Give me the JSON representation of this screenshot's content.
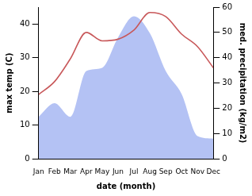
{
  "chart_data": {
    "type": "line",
    "xlabel": "date (month)",
    "ylabel": "max temp (C)",
    "y2label": "med. precipitation (kg/m2)",
    "categories": [
      "Jan",
      "Feb",
      "Mar",
      "Apr",
      "May",
      "Jun",
      "Jul",
      "Aug",
      "Sep",
      "Oct",
      "Nov",
      "Dec"
    ],
    "series": [
      {
        "name": "max temp",
        "type": "line",
        "color": "#c8585a",
        "axis": "y",
        "values": [
          19.1,
          22.9,
          29.7,
          37.5,
          35,
          35.5,
          38.2,
          43.4,
          42.2,
          37,
          33.3,
          27
        ]
      },
      {
        "name": "med. precipitation",
        "type": "area",
        "color": "#b4c2f4",
        "axis": "y2",
        "values": [
          16.6,
          22,
          16.6,
          34.7,
          36,
          48,
          56.4,
          49.7,
          34.7,
          25.6,
          9,
          8
        ]
      }
    ],
    "ylim": [
      0,
      45
    ],
    "yticks": [
      0,
      10,
      20,
      30,
      40
    ],
    "y2lim": [
      0,
      60
    ],
    "y2ticks": [
      0,
      10,
      20,
      30,
      40,
      50,
      60
    ],
    "grid": false
  }
}
